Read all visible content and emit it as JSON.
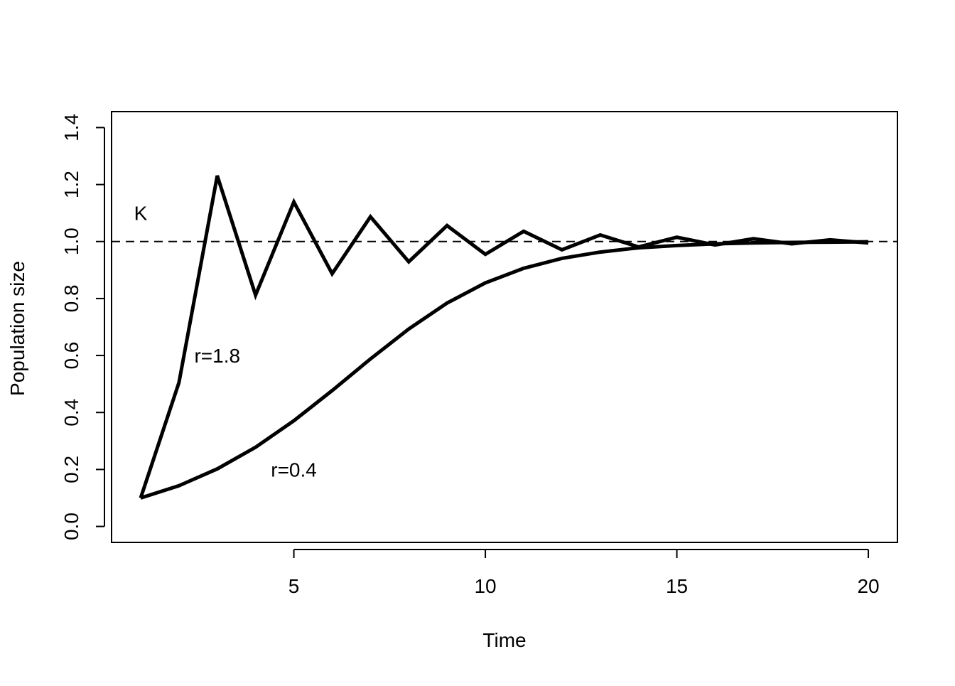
{
  "chart_data": {
    "type": "line",
    "x_label": "Time",
    "y_label": "Population size",
    "x": [
      1,
      2,
      3,
      4,
      5,
      6,
      7,
      8,
      9,
      10,
      11,
      12,
      13,
      14,
      15,
      16,
      17,
      18,
      19,
      20
    ],
    "series": [
      {
        "color": "#000000",
        "values": [
          0.1,
          0.505,
          1.231,
          0.812,
          1.139,
          0.887,
          1.087,
          0.929,
          1.056,
          0.955,
          1.036,
          0.971,
          1.023,
          0.981,
          1.015,
          0.988,
          1.01,
          0.992,
          1.006,
          0.995
        ]
      },
      {
        "color": "#000000",
        "values": [
          0.1,
          0.143,
          0.202,
          0.278,
          0.371,
          0.477,
          0.588,
          0.693,
          0.784,
          0.855,
          0.906,
          0.941,
          0.963,
          0.978,
          0.986,
          0.992,
          0.995,
          0.997,
          0.998,
          0.999
        ]
      }
    ],
    "hline": {
      "value": 1,
      "style": "dashed",
      "color": "#000000"
    },
    "annotations": [
      {
        "text": "K",
        "x": 1,
        "y": 1.1
      },
      {
        "text": "r=1.8",
        "x": 3,
        "y": 0.6
      },
      {
        "text": "r=0.4",
        "x": 5,
        "y": 0.2
      }
    ],
    "xlim": [
      0.24,
      20.76
    ],
    "ylim": [
      -0.056,
      1.456
    ],
    "xticks": [
      5,
      10,
      15,
      20
    ],
    "yticks": [
      {
        "value": 0,
        "label": "0.0"
      },
      0.2,
      0.4,
      0.6,
      0.8,
      {
        "value": 1,
        "label": "1.0"
      },
      1.2,
      1.4
    ]
  }
}
